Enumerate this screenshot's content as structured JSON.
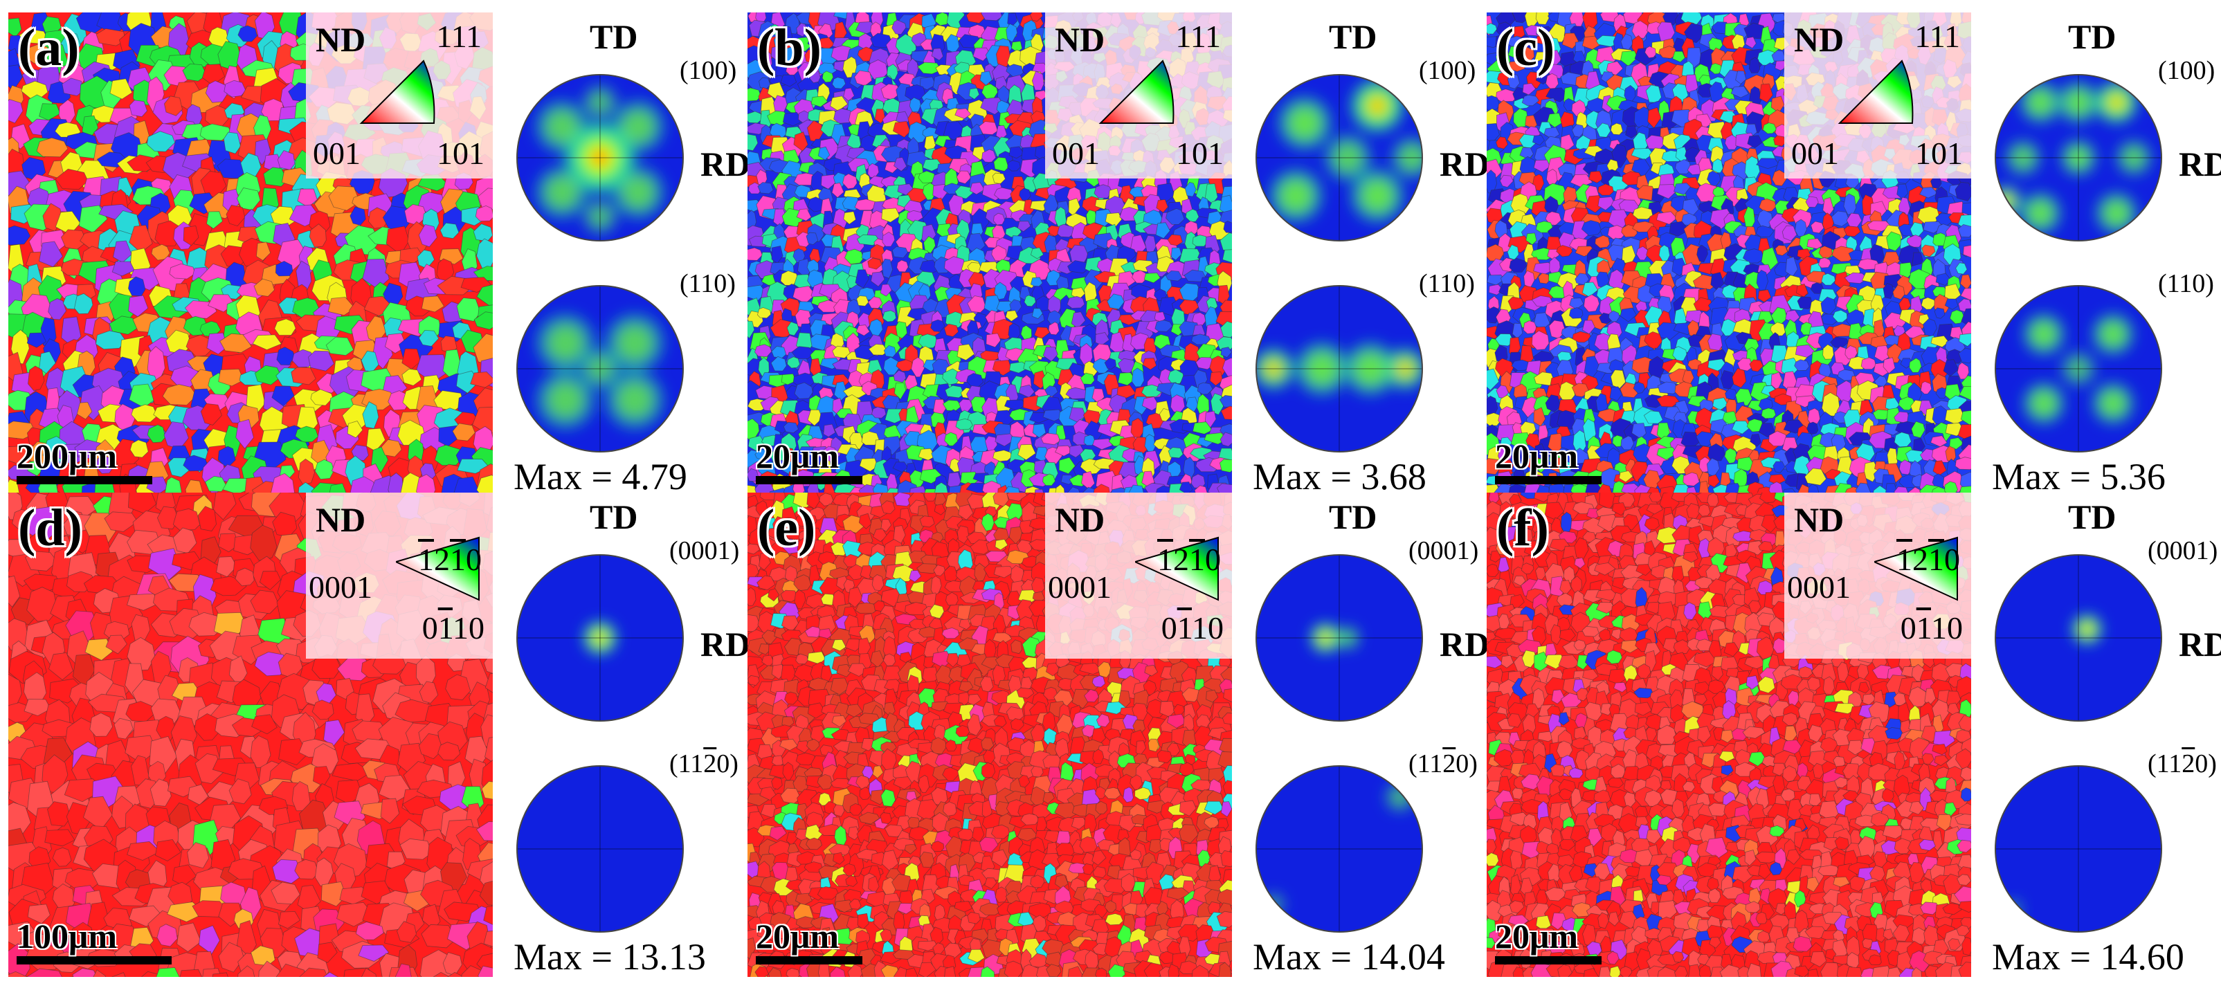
{
  "panels": [
    {
      "id": "a",
      "tag": "(a)",
      "lattice": "cubic",
      "legend": {
        "nd": "ND",
        "top": "111",
        "left": "001",
        "right": "101"
      },
      "scalebar": "200μm",
      "scale_frac": 0.28,
      "pole1": "(100)",
      "pole2": "(110)",
      "td": "TD",
      "rd": "RD",
      "max": "Max = 4.79",
      "map_palette": [
        "#ff1e1e",
        "#ff3a2a",
        "#22e63c",
        "#40ff5a",
        "#f4f41c",
        "#1e2cf0",
        "#c83cf0",
        "#ff48c8",
        "#28d8d8",
        "#ff8c28",
        "#9a3cf0"
      ],
      "pf1_spots": [
        [
          0.5,
          0.5,
          0.6,
          1.0
        ],
        [
          0.28,
          0.32,
          0.45,
          0.6
        ],
        [
          0.72,
          0.32,
          0.45,
          0.6
        ],
        [
          0.28,
          0.7,
          0.45,
          0.6
        ],
        [
          0.72,
          0.7,
          0.45,
          0.6
        ],
        [
          0.5,
          0.18,
          0.3,
          0.5
        ],
        [
          0.5,
          0.84,
          0.3,
          0.5
        ]
      ],
      "pf2_spots": [
        [
          0.3,
          0.35,
          0.5,
          0.6
        ],
        [
          0.7,
          0.35,
          0.5,
          0.6
        ],
        [
          0.3,
          0.68,
          0.5,
          0.6
        ],
        [
          0.7,
          0.68,
          0.5,
          0.6
        ],
        [
          0.5,
          0.5,
          0.35,
          0.55
        ]
      ]
    },
    {
      "id": "b",
      "tag": "(b)",
      "lattice": "cubic",
      "legend": {
        "nd": "ND",
        "top": "111",
        "left": "001",
        "right": "101"
      },
      "scalebar": "20μm",
      "scale_frac": 0.22,
      "pole1": "(100)",
      "pole2": "(110)",
      "td": "TD",
      "rd": "RD",
      "max": "Max = 3.68",
      "map_palette": [
        "#1e28e6",
        "#2a50f0",
        "#ff2828",
        "#c83cf0",
        "#ff48c8",
        "#28e6a0",
        "#3cff3c",
        "#f0f028",
        "#1e90ff",
        "#8c3cf0"
      ],
      "pf1_spots": [
        [
          0.3,
          0.3,
          0.45,
          0.7
        ],
        [
          0.72,
          0.2,
          0.45,
          0.9
        ],
        [
          0.25,
          0.72,
          0.45,
          0.7
        ],
        [
          0.72,
          0.72,
          0.45,
          0.7
        ],
        [
          0.55,
          0.5,
          0.4,
          0.6
        ],
        [
          0.92,
          0.5,
          0.35,
          0.6
        ]
      ],
      "pf2_spots": [
        [
          0.12,
          0.5,
          0.35,
          0.8
        ],
        [
          0.88,
          0.5,
          0.35,
          0.8
        ],
        [
          0.4,
          0.5,
          0.45,
          0.7
        ],
        [
          0.68,
          0.5,
          0.45,
          0.7
        ]
      ]
    },
    {
      "id": "c",
      "tag": "(c)",
      "lattice": "cubic",
      "legend": {
        "nd": "ND",
        "top": "111",
        "left": "001",
        "right": "101"
      },
      "scalebar": "20μm",
      "scale_frac": 0.22,
      "pole1": "(100)",
      "pole2": "(110)",
      "td": "TD",
      "rd": "RD",
      "max": "Max = 5.36",
      "map_palette": [
        "#1e3cf0",
        "#3c5aff",
        "#ff2020",
        "#ff5030",
        "#28e6e6",
        "#c83cf0",
        "#ff48c8",
        "#f0f028",
        "#3cff3c",
        "#1e1ec8"
      ],
      "pf1_spots": [
        [
          0.28,
          0.18,
          0.35,
          0.7
        ],
        [
          0.5,
          0.18,
          0.35,
          0.7
        ],
        [
          0.72,
          0.18,
          0.35,
          0.95
        ],
        [
          0.18,
          0.5,
          0.3,
          0.6
        ],
        [
          0.5,
          0.5,
          0.3,
          0.7
        ],
        [
          0.82,
          0.5,
          0.3,
          0.6
        ],
        [
          0.28,
          0.82,
          0.35,
          0.7
        ],
        [
          0.08,
          0.75,
          0.25,
          0.9
        ],
        [
          0.72,
          0.82,
          0.35,
          0.7
        ]
      ],
      "pf2_spots": [
        [
          0.3,
          0.3,
          0.35,
          0.7
        ],
        [
          0.7,
          0.3,
          0.35,
          0.7
        ],
        [
          0.3,
          0.7,
          0.35,
          0.7
        ],
        [
          0.7,
          0.7,
          0.35,
          0.7
        ],
        [
          0.5,
          0.5,
          0.3,
          0.5
        ]
      ]
    },
    {
      "id": "d",
      "tag": "(d)",
      "lattice": "hex",
      "legend": {
        "nd": "ND",
        "top": "1210",
        "left": "0001",
        "right": "0110"
      },
      "scalebar": "100μm",
      "scale_frac": 0.32,
      "pole1": "(0001)",
      "pole2": "(1120)",
      "td": "TD",
      "rd": "RD",
      "max": "Max = 13.13",
      "map_palette": [
        "#ff1e1e",
        "#ff2c2c",
        "#ff3c3c",
        "#ff5050",
        "#ff2878",
        "#ff3ca0",
        "#e6281e",
        "#ff6e3c",
        "#ffb432",
        "#c83cf0",
        "#3cff3c"
      ],
      "pf1_spots": [
        [
          0.5,
          0.5,
          0.28,
          1.0
        ]
      ],
      "pf2_spots": []
    },
    {
      "id": "e",
      "tag": "(e)",
      "lattice": "hex",
      "legend": {
        "nd": "ND",
        "top": "1210",
        "left": "0001",
        "right": "0110"
      },
      "scalebar": "20μm",
      "scale_frac": 0.22,
      "pole1": "(0001)",
      "pole2": "(1120)",
      "td": "TD",
      "rd": "RD",
      "max": "Max = 14.04",
      "map_palette": [
        "#ff1e1e",
        "#ff2c2c",
        "#ff3c3c",
        "#e63c28",
        "#ff5a3c",
        "#ff2878",
        "#ff3ca0",
        "#ff8c28",
        "#f0f028",
        "#c83cf0",
        "#3cff3c",
        "#28e6e6"
      ],
      "pf1_spots": [
        [
          0.42,
          0.5,
          0.25,
          1.0
        ],
        [
          0.55,
          0.5,
          0.2,
          0.6
        ]
      ],
      "pf2_spots": [
        [
          0.85,
          0.2,
          0.25,
          0.5
        ],
        [
          0.12,
          0.82,
          0.2,
          0.4
        ]
      ]
    },
    {
      "id": "f",
      "tag": "(f)",
      "lattice": "hex",
      "legend": {
        "nd": "ND",
        "top": "1210",
        "left": "0001",
        "right": "0110"
      },
      "scalebar": "20μm",
      "scale_frac": 0.22,
      "pole1": "(0001)",
      "pole2": "(1120)",
      "td": "TD",
      "rd": "RD",
      "max": "Max = 14.60",
      "map_palette": [
        "#ff1e1e",
        "#ff2c2c",
        "#ff3c3c",
        "#ff5050",
        "#ff2878",
        "#ff3ca0",
        "#ff6e3c",
        "#f0f028",
        "#c83cf0",
        "#3cff3c",
        "#1e3cf0"
      ],
      "pf1_spots": [
        [
          0.55,
          0.45,
          0.25,
          1.0
        ]
      ],
      "pf2_spots": [
        [
          0.12,
          0.85,
          0.18,
          0.35
        ]
      ]
    }
  ]
}
